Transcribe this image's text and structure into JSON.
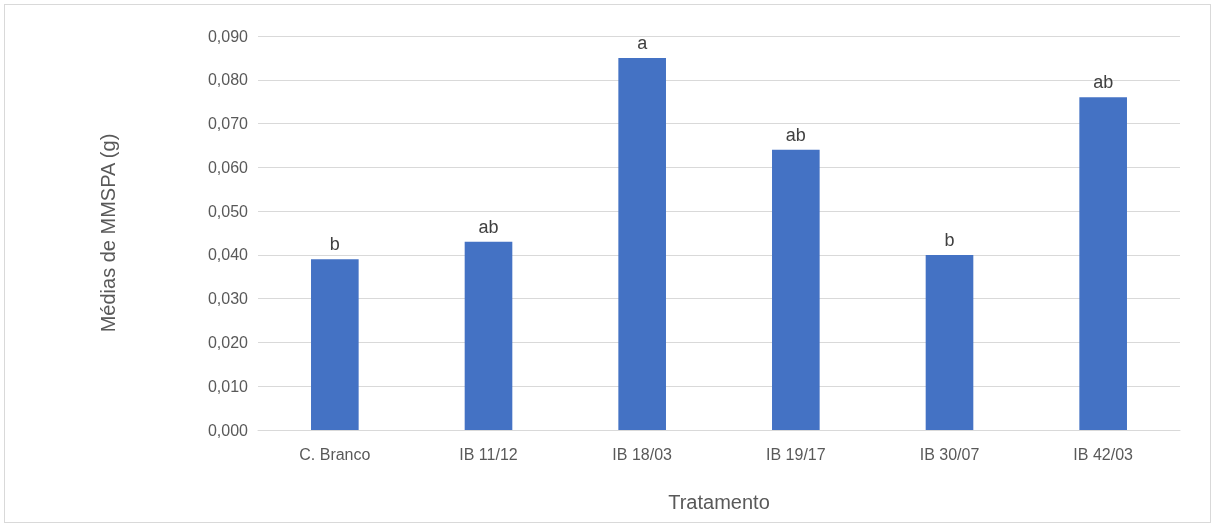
{
  "chart_data": {
    "type": "bar",
    "xlabel": "Tratamento",
    "ylabel": "Médias de MMSPA (g)",
    "categories": [
      "C. Branco",
      "IB 11/12",
      "IB 18/03",
      "IB 19/17",
      "IB 30/07",
      "IB 42/03"
    ],
    "values": [
      0.039,
      0.043,
      0.085,
      0.064,
      0.04,
      0.076
    ],
    "color": "#4472c4",
    "ylim": [
      0,
      0.09
    ],
    "yticks": [
      {
        "value": 0,
        "label": "0,000"
      },
      {
        "value": 0.01,
        "label": "0,010"
      },
      {
        "value": 0.02,
        "label": "0,020"
      },
      {
        "value": 0.03,
        "label": "0,030"
      },
      {
        "value": 0.04,
        "label": "0,040"
      },
      {
        "value": 0.05,
        "label": "0,050"
      },
      {
        "value": 0.06,
        "label": "0,060"
      },
      {
        "value": 0.07,
        "label": "0,070"
      },
      {
        "value": 0.08,
        "label": "0,080"
      },
      {
        "value": 0.09,
        "label": "0,090"
      }
    ],
    "grid": "y",
    "annotations": [
      {
        "text": "b",
        "x": "C. Branco",
        "y": 0.039
      },
      {
        "text": "ab",
        "x": "IB 11/12",
        "y": 0.043
      },
      {
        "text": "a",
        "x": "IB 18/03",
        "y": 0.085
      },
      {
        "text": "ab",
        "x": "IB 19/17",
        "y": 0.064
      },
      {
        "text": "b",
        "x": "IB 30/07",
        "y": 0.04
      },
      {
        "text": "ab",
        "x": "IB 42/03",
        "y": 0.076
      }
    ]
  }
}
